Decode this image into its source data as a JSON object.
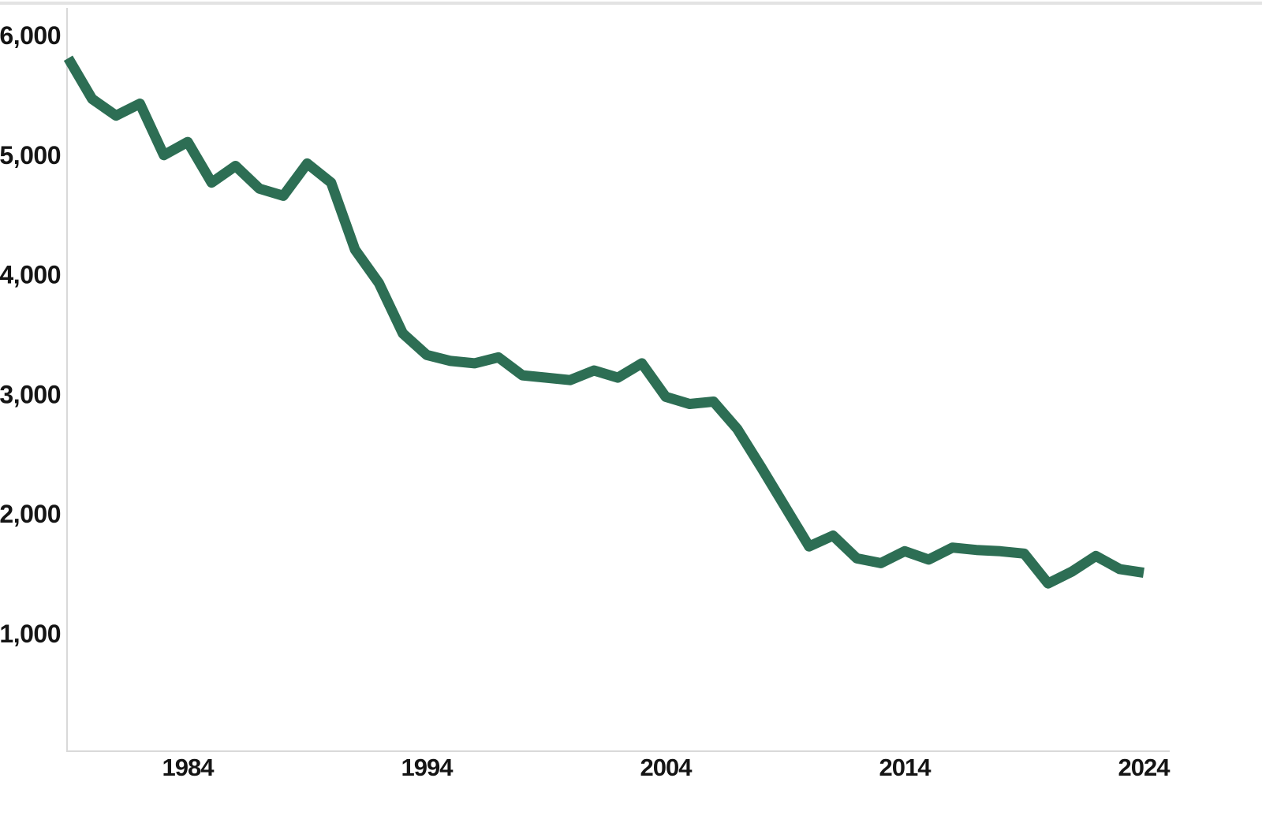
{
  "chart_data": {
    "type": "line",
    "title": "",
    "xlabel": "",
    "ylabel": "",
    "grid": false,
    "legend": false,
    "x": [
      1979,
      1980,
      1981,
      1982,
      1983,
      1984,
      1985,
      1986,
      1987,
      1988,
      1989,
      1990,
      1991,
      1992,
      1993,
      1994,
      1995,
      1996,
      1997,
      1998,
      1999,
      2000,
      2001,
      2002,
      2003,
      2004,
      2005,
      2006,
      2007,
      2008,
      2009,
      2010,
      2011,
      2012,
      2013,
      2014,
      2015,
      2016,
      2017,
      2018,
      2019,
      2020,
      2021,
      2022,
      2023,
      2024
    ],
    "series": [
      {
        "name": "value",
        "values": [
          5810,
          5470,
          5330,
          5430,
          5000,
          5110,
          4770,
          4910,
          4720,
          4660,
          4930,
          4770,
          4210,
          3930,
          3510,
          3330,
          3280,
          3260,
          3310,
          3160,
          3140,
          3120,
          3200,
          3140,
          3260,
          2980,
          2920,
          2940,
          2710,
          2390,
          2060,
          1730,
          1820,
          1630,
          1590,
          1690,
          1620,
          1720,
          1700,
          1690,
          1670,
          1420,
          1520,
          1650,
          1540,
          1510
        ]
      }
    ],
    "x_ticks": [
      1984,
      1994,
      2004,
      2014,
      2024
    ],
    "x_tick_labels": [
      "1984",
      "1994",
      "2004",
      "2014",
      "2024"
    ],
    "y_ticks": [
      1000,
      2000,
      3000,
      4000,
      5000,
      6000
    ],
    "y_tick_labels": [
      "1,000",
      "2,000",
      "3,000",
      "4,000",
      "5,000",
      "6,000"
    ],
    "xlim": [
      1979,
      2025
    ],
    "ylim": [
      0,
      6100
    ],
    "legend_position": "none"
  },
  "colors": {
    "line": "#2d6e54",
    "axis": "#d9d9d9",
    "label": "#151515",
    "top_rule": "#e3e3e3"
  }
}
